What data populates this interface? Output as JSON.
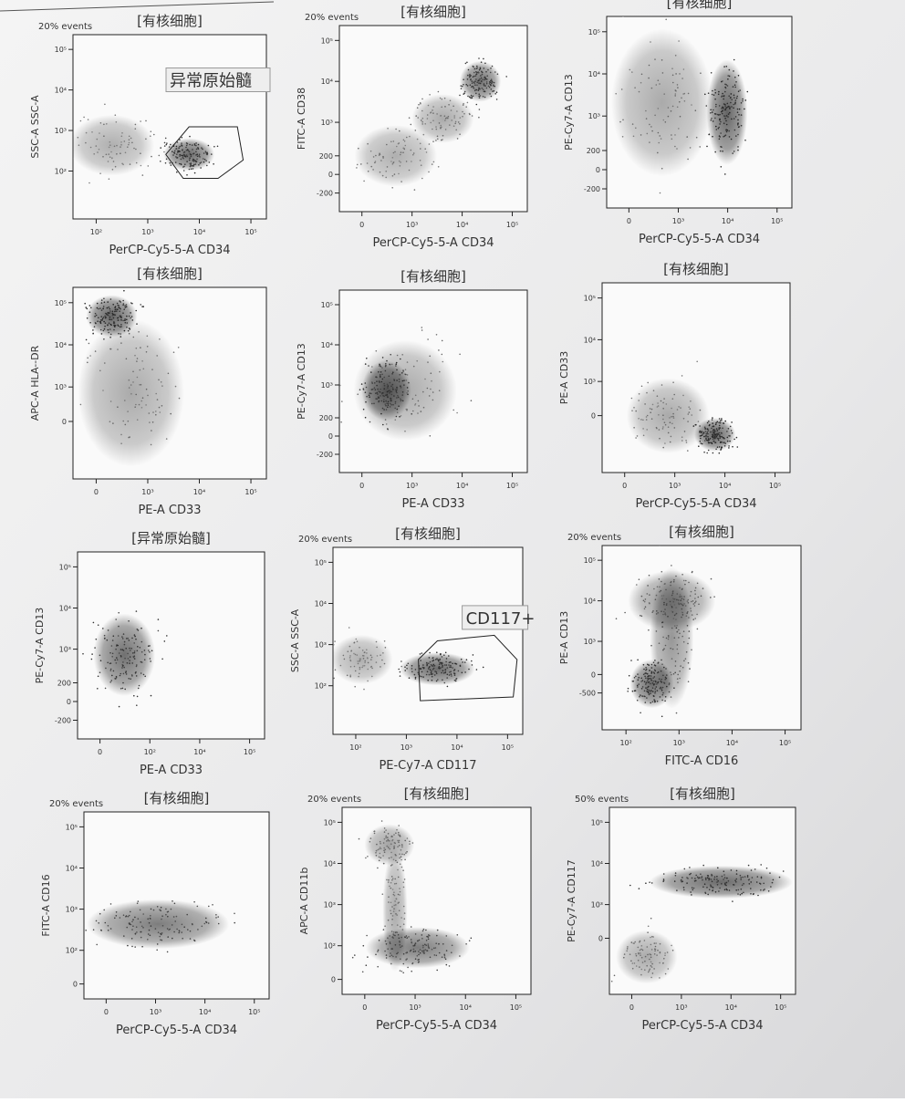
{
  "panels": [
    {
      "note": "20% events",
      "title": "[有核细胞]",
      "ylabel": "SSC-A SSC-A",
      "xlabel": "PerCP-Cy5-5-A CD34",
      "xticks": [
        "10²",
        "10³",
        "10⁴",
        "10⁵"
      ],
      "yticks": [
        "10⁵",
        "10⁴",
        "10³",
        "10²"
      ],
      "gate": "异常原始髓"
    },
    {
      "note": "20% events",
      "title": "[有核细胞]",
      "ylabel": "FITC-A CD38",
      "xlabel": "PerCP-Cy5-5-A CD34",
      "xticks": [
        "0",
        "10³",
        "10⁴",
        "10⁵"
      ],
      "yticks": [
        "10⁵",
        "10⁴",
        "10³",
        "200",
        "0",
        "-200"
      ]
    },
    {
      "title": "[有核细胞]",
      "ylabel": "PE-Cy7-A CD13",
      "xlabel": "PerCP-Cy5-5-A CD34",
      "xticks": [
        "0",
        "10³",
        "10⁴",
        "10⁵"
      ],
      "yticks": [
        "10⁵",
        "10⁴",
        "10³",
        "200",
        "0",
        "-200"
      ]
    },
    {
      "title": "[有核细胞]",
      "ylabel": "APC-A HLA--DR",
      "xlabel": "PE-A CD33",
      "xticks": [
        "0",
        "10³",
        "10⁴",
        "10⁵"
      ],
      "yticks": [
        "10⁵",
        "10⁴",
        "10³",
        "0"
      ]
    },
    {
      "title": "[有核细胞]",
      "ylabel": "PE-Cy7-A CD13",
      "xlabel": "PE-A CD33",
      "xticks": [
        "0",
        "10³",
        "10⁴",
        "10⁵"
      ],
      "yticks": [
        "10⁵",
        "10⁴",
        "10³",
        "200",
        "0",
        "-200"
      ]
    },
    {
      "title": "[有核细胞]",
      "ylabel": "PE-A CD33",
      "xlabel": "PerCP-Cy5-5-A CD34",
      "xticks": [
        "0",
        "10³",
        "10⁴",
        "10⁵"
      ],
      "yticks": [
        "10⁵",
        "10⁴",
        "10³",
        "0"
      ]
    },
    {
      "title": "[异常原始髓]",
      "ylabel": "PE-Cy7-A CD13",
      "xlabel": "PE-A CD33",
      "xticks": [
        "0",
        "10²",
        "10⁴",
        "10⁵"
      ],
      "yticks": [
        "10⁵",
        "10⁴",
        "10³",
        "200",
        "0",
        "-200"
      ]
    },
    {
      "note": "20% events",
      "title": "[有核细胞]",
      "ylabel": "SSC-A SSC-A",
      "xlabel": "PE-Cy7-A CD117",
      "xticks": [
        "10²",
        "10³",
        "10⁴",
        "10⁵"
      ],
      "yticks": [
        "10⁵",
        "10⁴",
        "10³",
        "10²"
      ],
      "gate": "CD117+"
    },
    {
      "note": "20% events",
      "title": "[有核细胞]",
      "ylabel": "PE-A CD13",
      "xlabel": "FITC-A CD16",
      "xticks": [
        "10²",
        "10³",
        "10⁴",
        "10⁵"
      ],
      "yticks": [
        "10⁵",
        "10⁴",
        "10³",
        "0",
        "-500"
      ]
    },
    {
      "note": "20% events",
      "title": "[有核细胞]",
      "ylabel": "FITC-A CD16",
      "xlabel": "PerCP-Cy5-5-A CD34",
      "xticks": [
        "0",
        "10³",
        "10⁴",
        "10⁵"
      ],
      "yticks": [
        "10⁵",
        "10⁴",
        "10³",
        "10²",
        "0"
      ]
    },
    {
      "note": "20% events",
      "title": "[有核细胞]",
      "ylabel": "APC-A CD11b",
      "xlabel": "PerCP-Cy5-5-A CD34",
      "xticks": [
        "0",
        "10³",
        "10⁴",
        "10⁵"
      ],
      "yticks": [
        "10⁵",
        "10⁴",
        "10³",
        "10²",
        "0"
      ]
    },
    {
      "note": "50% events",
      "title": "[有核细胞]",
      "ylabel": "PE-Cy7-A CD117",
      "xlabel": "PerCP-Cy5-5-A CD34",
      "xticks": [
        "0",
        "10³",
        "10⁴",
        "10⁵"
      ],
      "yticks": [
        "10⁵",
        "10⁴",
        "10³",
        "0"
      ]
    }
  ]
}
